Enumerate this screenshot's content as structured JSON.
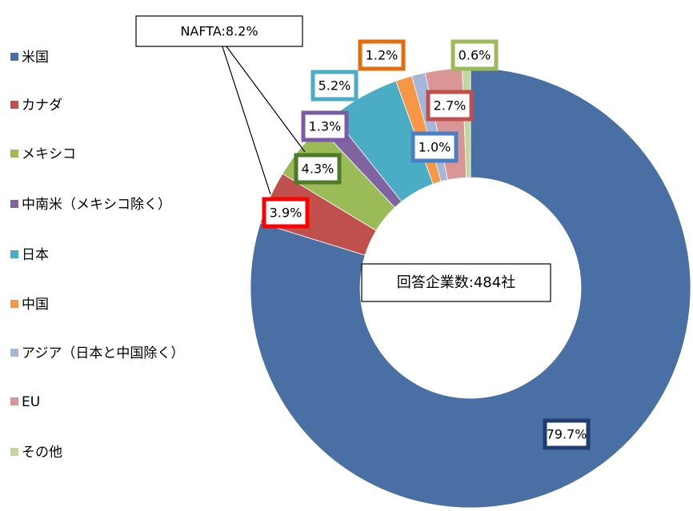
{
  "chart_data": {
    "type": "donut",
    "categories": [
      "米国",
      "カナダ",
      "メキシコ",
      "中南米（メキシコ除く）",
      "日本",
      "中国",
      "アジア（日本と中国除く）",
      "EU",
      "その他"
    ],
    "values": [
      79.7,
      3.9,
      4.3,
      1.3,
      5.2,
      1.2,
      1.0,
      2.7,
      0.6
    ],
    "value_labels": [
      "79.7%",
      "3.9%",
      "4.3%",
      "1.3%",
      "5.2%",
      "1.2%",
      "1.0%",
      "2.7%",
      "0.6%"
    ],
    "colors": [
      "#4a6fa5",
      "#c0504d",
      "#9bbb59",
      "#8064a2",
      "#4bacc6",
      "#f79646",
      "#a5b6d9",
      "#d99694",
      "#c3d69b"
    ],
    "label_border_colors": [
      "#1f3d6e",
      "#ff0000",
      "#4f7a28",
      "#7b5aa6",
      "#4bacc6",
      "#e46c0a",
      "#4a7fc4",
      "#c0504d",
      "#9bbb59"
    ],
    "annotations": [
      "NAFTA:8.2%",
      "回答企業数:484社"
    ],
    "legend": "left"
  }
}
